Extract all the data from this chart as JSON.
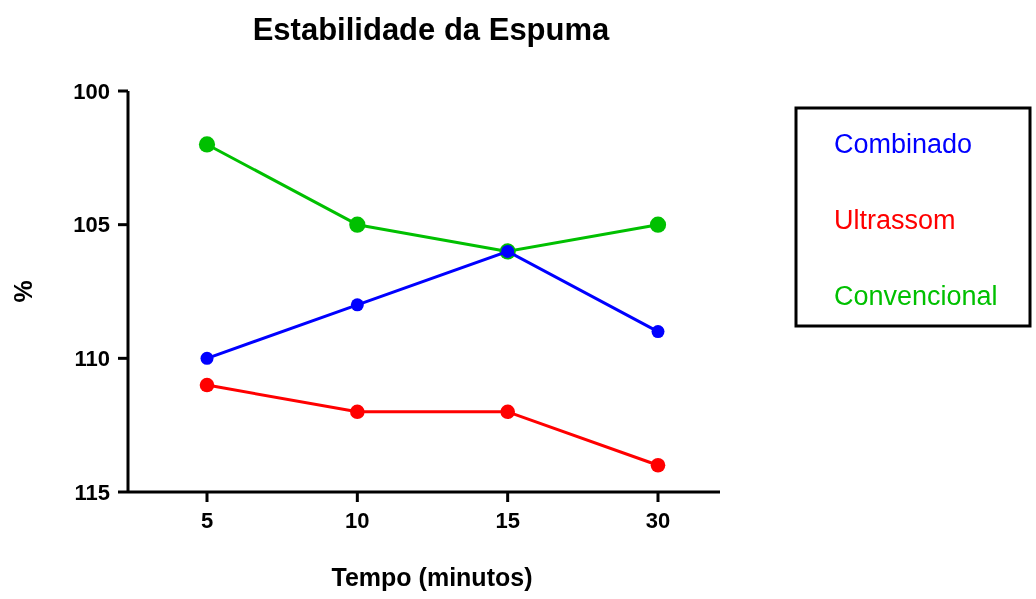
{
  "chart_data": {
    "type": "line",
    "title": "Estabilidade da Espuma",
    "xlabel": "Tempo (minutos)",
    "ylabel": "%",
    "categories": [
      "5",
      "10",
      "15",
      "30"
    ],
    "series": [
      {
        "name": "Combinado",
        "color": "#0000ff",
        "values": [
          110,
          108,
          106,
          109
        ]
      },
      {
        "name": "Ultrassom",
        "color": "#ff0000",
        "values": [
          111,
          112,
          112,
          114
        ]
      },
      {
        "name": "Convencional",
        "color": "#00c000",
        "values": [
          102,
          105,
          106,
          105
        ]
      }
    ],
    "ylim": [
      115,
      100
    ],
    "yticks": [
      100,
      105,
      110,
      115
    ],
    "legend": "right",
    "marker": "circle",
    "line_style": "solid",
    "grid": false
  }
}
